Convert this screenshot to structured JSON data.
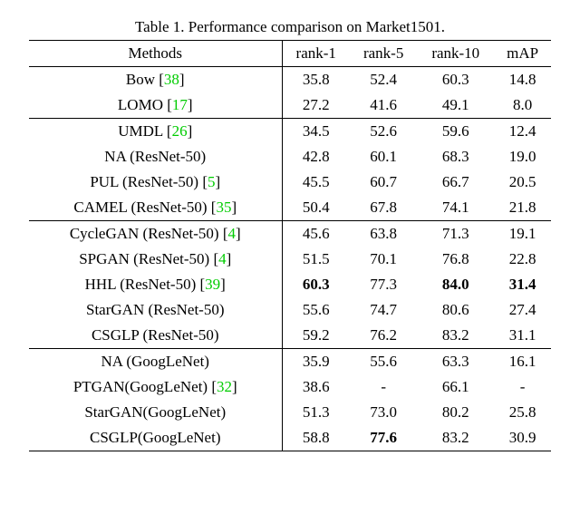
{
  "caption_prefix": "Table 1. ",
  "caption_text": "Performance comparison on Market1501.",
  "columns": [
    "Methods",
    "rank-1",
    "rank-5",
    "rank-10",
    "mAP"
  ],
  "groups": [
    {
      "rows": [
        {
          "method_parts": [
            {
              "t": "Bow ["
            },
            {
              "t": "38",
              "cite": true
            },
            {
              "t": "]"
            }
          ],
          "vals": [
            "35.8",
            "52.4",
            "60.3",
            "14.8"
          ],
          "bold": [
            false,
            false,
            false,
            false
          ]
        },
        {
          "method_parts": [
            {
              "t": "LOMO ["
            },
            {
              "t": "17",
              "cite": true
            },
            {
              "t": "]"
            }
          ],
          "vals": [
            "27.2",
            "41.6",
            "49.1",
            "8.0"
          ],
          "bold": [
            false,
            false,
            false,
            false
          ]
        }
      ]
    },
    {
      "rows": [
        {
          "method_parts": [
            {
              "t": "UMDL ["
            },
            {
              "t": "26",
              "cite": true
            },
            {
              "t": "]"
            }
          ],
          "vals": [
            "34.5",
            "52.6",
            "59.6",
            "12.4"
          ],
          "bold": [
            false,
            false,
            false,
            false
          ]
        },
        {
          "method_parts": [
            {
              "t": "NA (ResNet-50)"
            }
          ],
          "vals": [
            "42.8",
            "60.1",
            "68.3",
            "19.0"
          ],
          "bold": [
            false,
            false,
            false,
            false
          ]
        },
        {
          "method_parts": [
            {
              "t": "PUL (ResNet-50) ["
            },
            {
              "t": "5",
              "cite": true
            },
            {
              "t": "]"
            }
          ],
          "vals": [
            "45.5",
            "60.7",
            "66.7",
            "20.5"
          ],
          "bold": [
            false,
            false,
            false,
            false
          ]
        },
        {
          "method_parts": [
            {
              "t": "CAMEL (ResNet-50) ["
            },
            {
              "t": "35",
              "cite": true
            },
            {
              "t": "]"
            }
          ],
          "vals": [
            "50.4",
            "67.8",
            "74.1",
            "21.8"
          ],
          "bold": [
            false,
            false,
            false,
            false
          ]
        }
      ]
    },
    {
      "rows": [
        {
          "method_parts": [
            {
              "t": "CycleGAN (ResNet-50) ["
            },
            {
              "t": "4",
              "cite": true
            },
            {
              "t": "]"
            }
          ],
          "vals": [
            "45.6",
            "63.8",
            "71.3",
            "19.1"
          ],
          "bold": [
            false,
            false,
            false,
            false
          ]
        },
        {
          "method_parts": [
            {
              "t": "SPGAN (ResNet-50) ["
            },
            {
              "t": "4",
              "cite": true
            },
            {
              "t": "]"
            }
          ],
          "vals": [
            "51.5",
            "70.1",
            "76.8",
            "22.8"
          ],
          "bold": [
            false,
            false,
            false,
            false
          ]
        },
        {
          "method_parts": [
            {
              "t": "HHL (ResNet-50) ["
            },
            {
              "t": "39",
              "cite": true
            },
            {
              "t": "]"
            }
          ],
          "vals": [
            "60.3",
            "77.3",
            "84.0",
            "31.4"
          ],
          "bold": [
            true,
            false,
            true,
            true
          ]
        },
        {
          "method_parts": [
            {
              "t": "StarGAN (ResNet-50)"
            }
          ],
          "vals": [
            "55.6",
            "74.7",
            "80.6",
            "27.4"
          ],
          "bold": [
            false,
            false,
            false,
            false
          ]
        },
        {
          "method_parts": [
            {
              "t": "CSGLP (ResNet-50)"
            }
          ],
          "vals": [
            "59.2",
            "76.2",
            "83.2",
            "31.1"
          ],
          "bold": [
            false,
            false,
            false,
            false
          ]
        }
      ]
    },
    {
      "rows": [
        {
          "method_parts": [
            {
              "t": "NA (GoogLeNet)"
            }
          ],
          "vals": [
            "35.9",
            "55.6",
            "63.3",
            "16.1"
          ],
          "bold": [
            false,
            false,
            false,
            false
          ]
        },
        {
          "method_parts": [
            {
              "t": "PTGAN(GoogLeNet) ["
            },
            {
              "t": "32",
              "cite": true
            },
            {
              "t": "]"
            }
          ],
          "vals": [
            "38.6",
            "-",
            "66.1",
            "-"
          ],
          "bold": [
            false,
            false,
            false,
            false
          ]
        },
        {
          "method_parts": [
            {
              "t": "StarGAN(GoogLeNet)"
            }
          ],
          "vals": [
            "51.3",
            "73.0",
            "80.2",
            "25.8"
          ],
          "bold": [
            false,
            false,
            false,
            false
          ]
        },
        {
          "method_parts": [
            {
              "t": "CSGLP(GoogLeNet)"
            }
          ],
          "vals": [
            "58.8",
            "77.6",
            "83.2",
            "30.9"
          ],
          "bold": [
            false,
            true,
            false,
            false
          ]
        }
      ]
    }
  ],
  "style": {
    "cite_color": "#00cc00",
    "background": "#ffffff",
    "text_color": "#000000",
    "font_family": "Times New Roman",
    "font_size_pt": 13,
    "rule_color": "#000000",
    "table_width_pct": 96
  }
}
